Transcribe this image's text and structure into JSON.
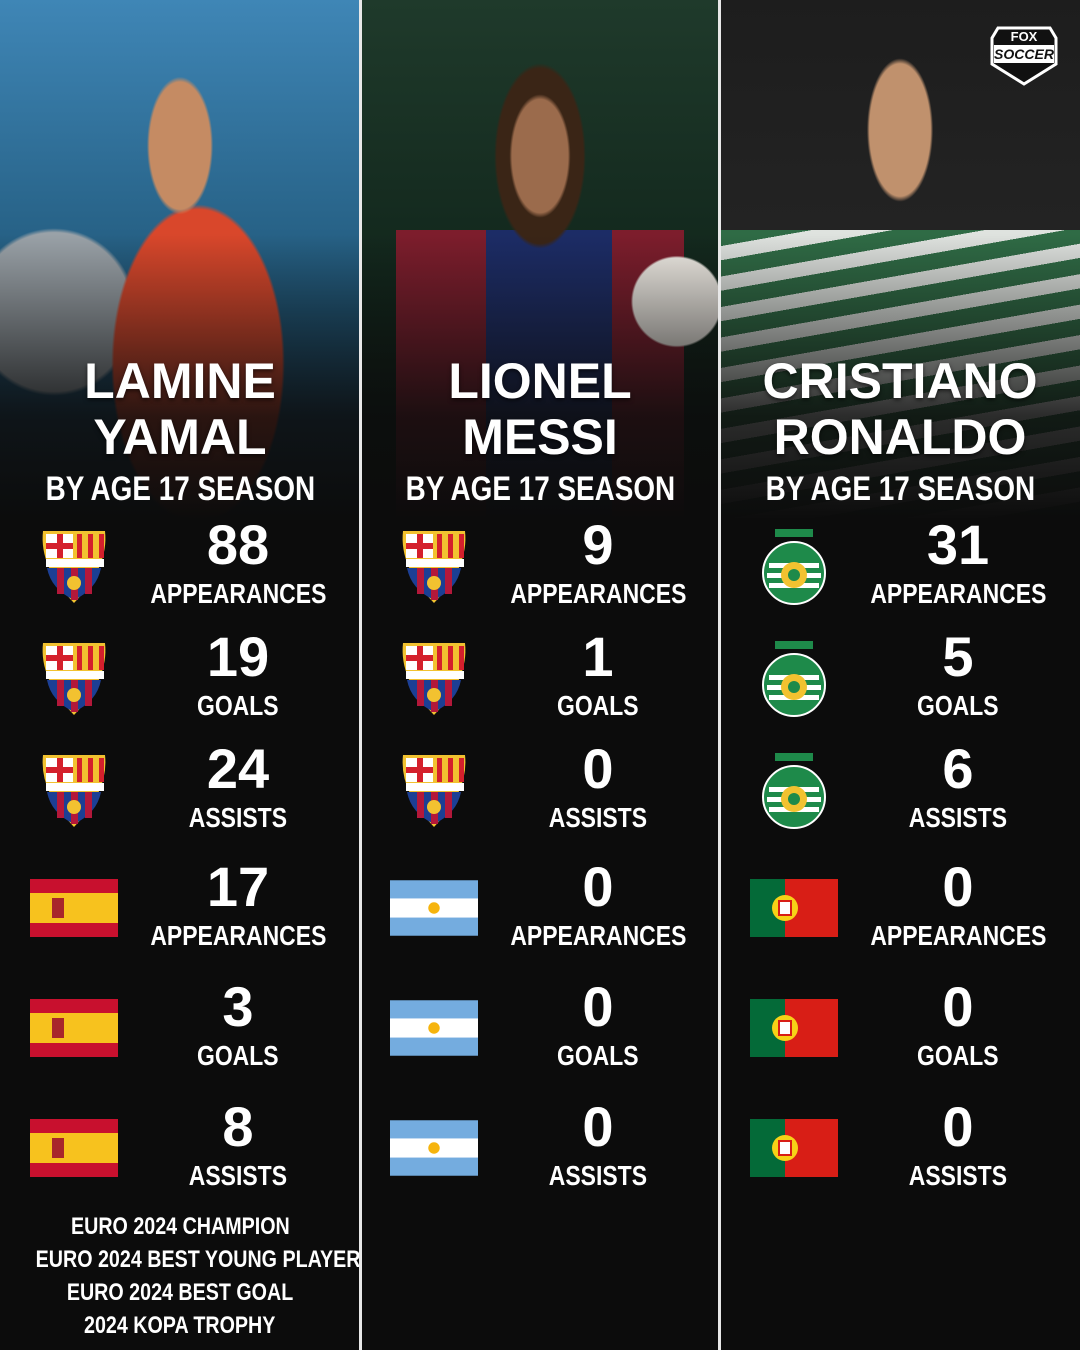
{
  "brand": {
    "logo_top": "FOX",
    "logo_bottom": "SOCCER"
  },
  "columns": [
    {
      "name": [
        "LAMINE",
        "YAMAL"
      ],
      "subtitle": "BY AGE 17 SEASON",
      "stats": [
        {
          "value": "88",
          "label": "APPEARANCES",
          "icon": "fc-barcelona-crest-icon"
        },
        {
          "value": "19",
          "label": "GOALS",
          "icon": "fc-barcelona-crest-icon"
        },
        {
          "value": "24",
          "label": "ASSISTS",
          "icon": "fc-barcelona-crest-icon"
        },
        {
          "value": "17",
          "label": "APPEARANCES",
          "icon": "spain-flag-icon"
        },
        {
          "value": "3",
          "label": "GOALS",
          "icon": "spain-flag-icon"
        },
        {
          "value": "8",
          "label": "ASSISTS",
          "icon": "spain-flag-icon"
        }
      ],
      "honors": [
        "EURO 2024 CHAMPION",
        "EURO 2024 BEST YOUNG PLAYER",
        "EURO 2024 BEST GOAL",
        "2024 KOPA TROPHY"
      ]
    },
    {
      "name": [
        "LIONEL",
        "MESSI"
      ],
      "subtitle": "BY AGE 17 SEASON",
      "stats": [
        {
          "value": "9",
          "label": "APPEARANCES",
          "icon": "fc-barcelona-crest-icon"
        },
        {
          "value": "1",
          "label": "GOALS",
          "icon": "fc-barcelona-crest-icon"
        },
        {
          "value": "0",
          "label": "ASSISTS",
          "icon": "fc-barcelona-crest-icon"
        },
        {
          "value": "0",
          "label": "APPEARANCES",
          "icon": "argentina-flag-icon"
        },
        {
          "value": "0",
          "label": "GOALS",
          "icon": "argentina-flag-icon"
        },
        {
          "value": "0",
          "label": "ASSISTS",
          "icon": "argentina-flag-icon"
        }
      ],
      "honors": []
    },
    {
      "name": [
        "CRISTIANO",
        "RONALDO"
      ],
      "subtitle": "BY AGE 17 SEASON",
      "stats": [
        {
          "value": "31",
          "label": "APPEARANCES",
          "icon": "sporting-cp-crest-icon"
        },
        {
          "value": "5",
          "label": "GOALS",
          "icon": "sporting-cp-crest-icon"
        },
        {
          "value": "6",
          "label": "ASSISTS",
          "icon": "sporting-cp-crest-icon"
        },
        {
          "value": "0",
          "label": "APPEARANCES",
          "icon": "portugal-flag-icon"
        },
        {
          "value": "0",
          "label": "GOALS",
          "icon": "portugal-flag-icon"
        },
        {
          "value": "0",
          "label": "ASSISTS",
          "icon": "portugal-flag-icon"
        }
      ],
      "honors": []
    }
  ],
  "colors": {
    "background": "#0c0c0c",
    "text": "#ffffff",
    "separator": "#e8e8e8"
  }
}
